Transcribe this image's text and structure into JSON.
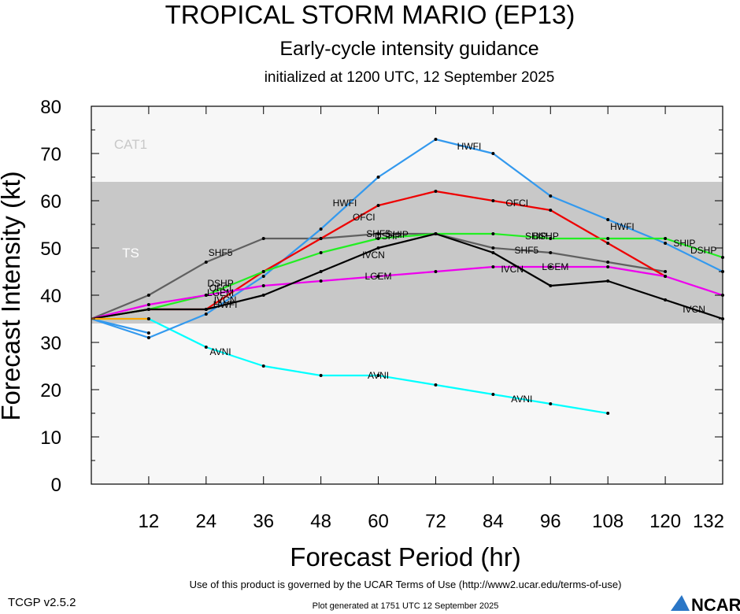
{
  "title": "TROPICAL STORM MARIO (EP13)",
  "subtitle": "Early-cycle intensity guidance",
  "initialized": "initialized at 1200 UTC, 12 September 2025",
  "footer": {
    "terms": "Use of this product is governed by the UCAR Terms of Use (http://www2.ucar.edu/terms-of-use)",
    "generated": "Plot generated at 1751 UTC   12 September 2025",
    "version": "TCGP v2.5.2",
    "logo": "NCAR"
  },
  "chart_data": {
    "type": "line",
    "xlabel": "Forecast Period (hr)",
    "ylabel": "Forecast Intensity (kt)",
    "xlim": [
      0,
      132
    ],
    "ylim": [
      0,
      80
    ],
    "xticks": [
      12,
      24,
      36,
      48,
      60,
      72,
      84,
      96,
      108,
      120,
      132
    ],
    "yticks": [
      0,
      10,
      20,
      30,
      40,
      50,
      60,
      70,
      80
    ],
    "bands": [
      {
        "name": "TS",
        "from": 34,
        "to": 64,
        "color": "#c8c8c8"
      },
      {
        "name": "CAT1",
        "from": 64,
        "to": 83,
        "color": "#f7f7f7"
      }
    ],
    "series": [
      {
        "name": "AVNI",
        "color": "#00ffff",
        "x": [
          0,
          12,
          24,
          36,
          48,
          60,
          72,
          84,
          96,
          108
        ],
        "y": [
          35,
          35,
          29,
          25,
          23,
          23,
          21,
          19,
          17,
          15
        ]
      },
      {
        "name": "SHF5",
        "color": "#606060",
        "x": [
          0,
          12,
          24,
          36,
          48,
          60,
          72,
          84,
          96,
          108,
          120
        ],
        "y": [
          35,
          40,
          47,
          52,
          52,
          53,
          53,
          50,
          49,
          47,
          45
        ]
      },
      {
        "name": "HWFI",
        "color": "#3399ee",
        "x": [
          0,
          12,
          24,
          36,
          48,
          60,
          72,
          84,
          96,
          108,
          120,
          132
        ],
        "y": [
          35,
          31,
          36,
          44,
          54,
          65,
          73,
          70,
          61,
          56,
          51,
          45
        ]
      },
      {
        "name": "OFCI",
        "color": "#ee0000",
        "x": [
          0,
          12,
          24,
          36,
          48,
          60,
          72,
          84,
          96,
          108,
          120
        ],
        "y": [
          35,
          37,
          37,
          45,
          52,
          59,
          62,
          60,
          58,
          51,
          44
        ]
      },
      {
        "name": "DSHP",
        "color": "#22ee22",
        "x": [
          0,
          12,
          24,
          36,
          48,
          60,
          72,
          84,
          96,
          108,
          120,
          132
        ],
        "y": [
          35,
          37,
          40,
          45,
          49,
          52,
          53,
          53,
          52,
          52,
          52,
          48
        ]
      },
      {
        "name": "LGEM",
        "color": "#ee00ee",
        "x": [
          0,
          12,
          24,
          36,
          48,
          60,
          72,
          84,
          96,
          108,
          120,
          132
        ],
        "y": [
          35,
          38,
          40,
          42,
          43,
          44,
          45,
          46,
          46,
          46,
          44,
          40
        ]
      },
      {
        "name": "IVCN",
        "color": "#000000",
        "x": [
          0,
          12,
          24,
          36,
          48,
          60,
          72,
          84,
          96,
          108,
          120,
          132
        ],
        "y": [
          35,
          37,
          37,
          40,
          45,
          50,
          53,
          49,
          42,
          43,
          39,
          35
        ]
      },
      {
        "name": "",
        "color": "#3399ee",
        "x": [
          0,
          12
        ],
        "y": [
          35,
          32
        ]
      },
      {
        "name": "",
        "color": "#ffa500",
        "x": [
          0,
          12
        ],
        "y": [
          35,
          35
        ]
      }
    ],
    "labels": [
      {
        "text": "AVNI",
        "x": 27,
        "y": 28
      },
      {
        "text": "AVNI",
        "x": 60,
        "y": 23
      },
      {
        "text": "AVNI",
        "x": 90,
        "y": 18
      },
      {
        "text": "SHF5",
        "x": 27,
        "y": 49
      },
      {
        "text": "SHF5",
        "x": 60,
        "y": 53
      },
      {
        "text": "SHF5",
        "x": 91,
        "y": 49.5
      },
      {
        "text": "HWFI",
        "x": 53,
        "y": 59.5
      },
      {
        "text": "HWFI",
        "x": 79,
        "y": 71.5
      },
      {
        "text": "HWFI",
        "x": 111,
        "y": 54.5
      },
      {
        "text": "HWFI",
        "x": 28,
        "y": 38
      },
      {
        "text": "OFCI",
        "x": 57,
        "y": 56.5
      },
      {
        "text": "OFCI",
        "x": 89,
        "y": 59.5
      },
      {
        "text": "OFCI",
        "x": 27,
        "y": 41.5
      },
      {
        "text": "DSHP",
        "x": 62,
        "y": 52.5
      },
      {
        "text": "DSHP",
        "x": 95,
        "y": 52.5
      },
      {
        "text": "DSHP",
        "x": 128,
        "y": 49.5
      },
      {
        "text": "DSHP",
        "x": 27,
        "y": 42.5
      },
      {
        "text": "SHIP",
        "x": 64,
        "y": 52.8
      },
      {
        "text": "SHIP",
        "x": 93,
        "y": 52.5
      },
      {
        "text": "SHIP",
        "x": 124,
        "y": 51
      },
      {
        "text": "LGEM",
        "x": 60,
        "y": 44
      },
      {
        "text": "LGEM",
        "x": 97,
        "y": 46
      },
      {
        "text": "LGEM",
        "x": 27,
        "y": 40.5
      },
      {
        "text": "IVCN",
        "x": 59,
        "y": 48.5
      },
      {
        "text": "IVCN",
        "x": 88,
        "y": 45.5
      },
      {
        "text": "IVCN",
        "x": 126,
        "y": 37
      },
      {
        "text": "IVCN",
        "x": 28,
        "y": 39
      }
    ]
  }
}
